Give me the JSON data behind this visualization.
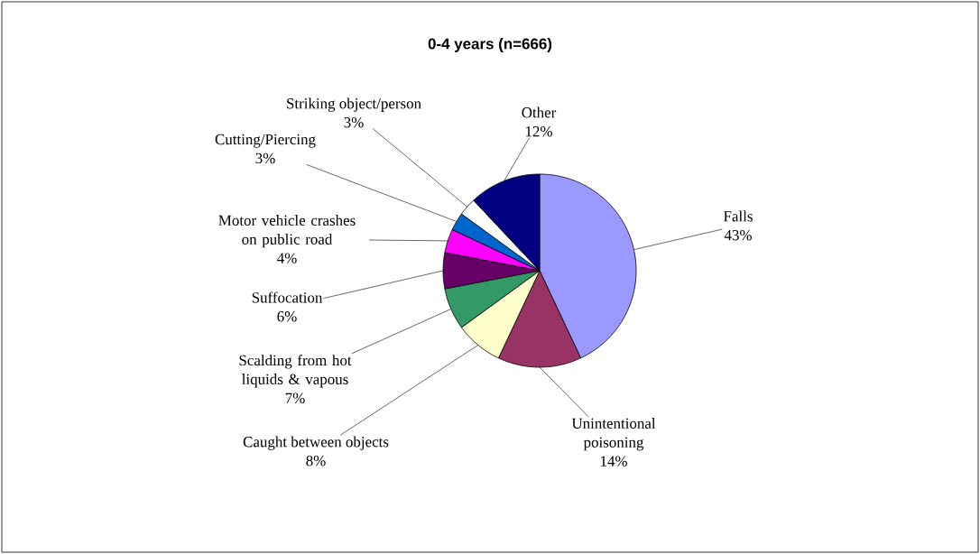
{
  "chart_data": {
    "type": "pie",
    "title": "0-4 years (n=666)",
    "categories": [
      "Falls",
      "Unintentional poisoning",
      "Caught between objects",
      "Scalding from hot liquids & vapous",
      "Suffocation",
      "Motor vehicle crashes on public road",
      "Cutting/Piercing",
      "Striking object/person",
      "Other"
    ],
    "values": [
      43,
      14,
      8,
      7,
      6,
      4,
      3,
      3,
      12
    ],
    "value_labels": [
      "43%",
      "14%",
      "8%",
      "7%",
      "6%",
      "4%",
      "3%",
      "3%",
      "12%"
    ],
    "colors": [
      "#9999ff",
      "#993366",
      "#ffffcc",
      "#339966",
      "#660066",
      "#ff00ff",
      "#0066cc",
      "#ffffff",
      "#000080"
    ]
  }
}
